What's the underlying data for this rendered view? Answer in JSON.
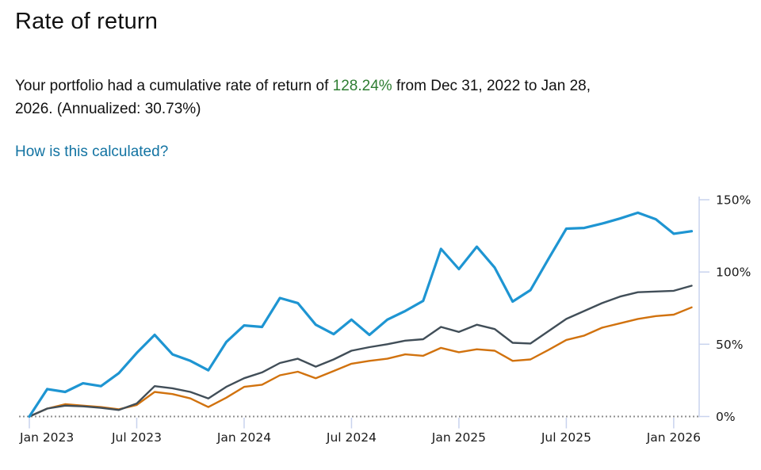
{
  "page": {
    "title": "Rate of return",
    "summary": {
      "prefix": "Your portfolio had a cumulative rate of return of ",
      "return_pct": "128.24%",
      "suffix_line1": " from Dec 31, 2022 to Jan 28,",
      "suffix_line2": "2026. (Annualized: 30.73%)"
    },
    "annualized_pct": "30.73%",
    "link_label": "How is this calculated?"
  },
  "colors": {
    "text": "#111111",
    "axis_label": "#1a1a1a",
    "positive_green": "#2e7d32",
    "link_blue": "#1273a2",
    "portfolio_blue": "#1e95d2",
    "benchmark_gray": "#414e58",
    "benchmark_orange": "#d1720e",
    "axis_line": "#c9d3ee",
    "zero_line": "#8e8e8e"
  },
  "chart_data": {
    "type": "line",
    "title": "",
    "xlabel": "",
    "ylabel": "",
    "x_unit": "months since Dec 31, 2022 (monthly points)",
    "x_range_dates": [
      "Dec 31, 2022",
      "Jan 28, 2026"
    ],
    "x_axis": {
      "tick_labels": [
        "Jan 2023",
        "Jul 2023",
        "Jan 2024",
        "Jul 2024",
        "Jan 2025",
        "Jul 2025",
        "Jan 2026"
      ],
      "tick_month_indices": [
        0,
        6,
        12,
        18,
        24,
        30,
        36
      ]
    },
    "y_axis": {
      "side": "right",
      "range": [
        0,
        150
      ],
      "tick_values": [
        0,
        50,
        100,
        150
      ],
      "tick_labels": [
        "0%",
        "50%",
        "100%",
        "150%"
      ]
    },
    "grid": "off",
    "legend": "none",
    "zero_baseline": "dotted",
    "series": [
      {
        "name": "portfolio",
        "color": "#1e95d2",
        "values": [
          0,
          19,
          17,
          23,
          21,
          30,
          44,
          56.5,
          43,
          38.5,
          32,
          51.5,
          63,
          62,
          82,
          78.5,
          63.5,
          57,
          67,
          56.5,
          67,
          73,
          80,
          116,
          102,
          117.5,
          103,
          79.5,
          87.5,
          109,
          130,
          130.5,
          133.5,
          137,
          141,
          136.5,
          126.5,
          128.24
        ]
      },
      {
        "name": "benchmark-gray",
        "color": "#414e58",
        "values": [
          0,
          5.5,
          7.5,
          7,
          6,
          4.5,
          9,
          21,
          19.5,
          17,
          12.5,
          20.5,
          26.5,
          30.5,
          37,
          40,
          34.5,
          39.5,
          45.5,
          48,
          50,
          52.5,
          53.5,
          62,
          58.5,
          63.5,
          60.5,
          51,
          50.5,
          59,
          67.5,
          73,
          78.5,
          83,
          86,
          86.5,
          87,
          90.5
        ]
      },
      {
        "name": "benchmark-orange",
        "color": "#d1720e",
        "values": [
          0,
          5.5,
          8.5,
          7.5,
          6.5,
          5,
          8,
          17,
          15.5,
          12.5,
          6.5,
          13,
          20.5,
          22,
          28.5,
          31,
          26.5,
          31.5,
          36.5,
          38.5,
          40,
          43,
          42,
          47.5,
          44.5,
          46.5,
          45.5,
          38.5,
          39.5,
          46,
          53,
          56,
          61.5,
          64.5,
          67.5,
          69.5,
          70.5,
          75.5
        ]
      }
    ]
  }
}
